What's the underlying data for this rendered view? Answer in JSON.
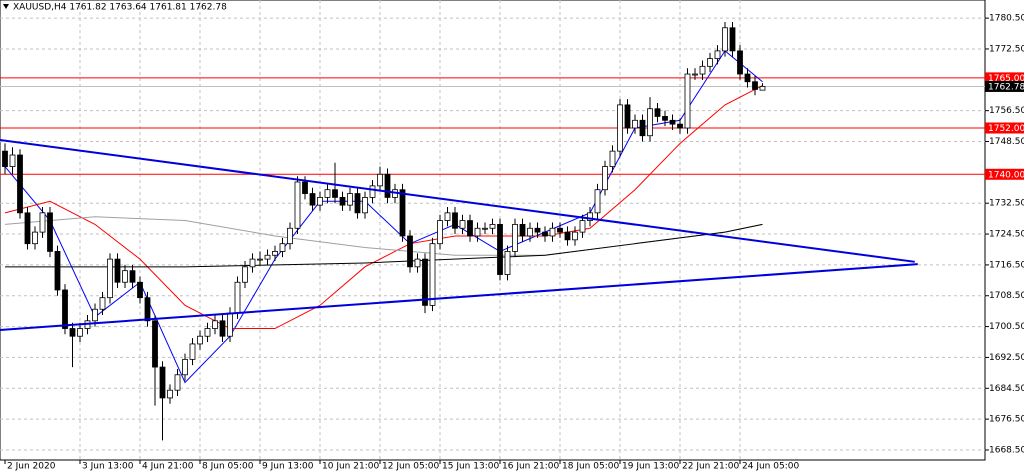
{
  "chart_data": {
    "type": "candlestick",
    "title": "XAUUSD,H4  1761.82 1763.64 1761.81 1762.78",
    "categories": [
      "2 Jun 2020",
      null,
      null,
      null,
      null,
      null,
      null,
      null,
      null,
      null,
      "3 Jun 13:00",
      null,
      null,
      null,
      null,
      null,
      null,
      null,
      "4 Jun 21:00",
      null,
      null,
      null,
      null,
      null,
      null,
      null,
      "8 Jun 05:00",
      null,
      null,
      null,
      null,
      null,
      null,
      null,
      "9 Jun 13:00",
      null,
      null,
      null,
      null,
      null,
      null,
      null,
      "10 Jun 21:00",
      null,
      null,
      null,
      null,
      null,
      null,
      null,
      "12 Jun 05:00",
      null,
      null,
      null,
      null,
      null,
      null,
      null,
      "15 Jun 13:00",
      null,
      null,
      null,
      null,
      null,
      null,
      null,
      "16 Jun 21:00",
      null,
      null,
      null,
      null,
      null,
      null,
      null,
      "18 Jun 05:00",
      null,
      null,
      null,
      null,
      null,
      null,
      null,
      "19 Jun 13:00",
      null,
      null,
      null,
      null,
      null,
      null,
      null,
      "22 Jun 21:00",
      null,
      null,
      null,
      null,
      null,
      null,
      null,
      "24 Jun 05:00",
      null,
      null,
      null
    ],
    "ohlc": [
      [
        1746,
        1748,
        1740,
        1742
      ],
      [
        1742,
        1747,
        1740,
        1745
      ],
      [
        1745,
        1746.5,
        1728.5,
        1730
      ],
      [
        1730,
        1731.5,
        1720.5,
        1722
      ],
      [
        1722,
        1726.5,
        1720.5,
        1725
      ],
      [
        1725,
        1731.5,
        1723.5,
        1730
      ],
      [
        1730,
        1731.5,
        1718.5,
        1720
      ],
      [
        1720,
        1721.5,
        1708.5,
        1710
      ],
      [
        1710,
        1711.5,
        1698.5,
        1700
      ],
      [
        1700,
        1701.5,
        1690,
        1698
      ],
      [
        1698,
        1701.5,
        1696.5,
        1700
      ],
      [
        1700,
        1703.5,
        1698.5,
        1702
      ],
      [
        1702,
        1706.5,
        1700.5,
        1705
      ],
      [
        1705,
        1709.5,
        1703.5,
        1708
      ],
      [
        1708,
        1719.5,
        1706.5,
        1718
      ],
      [
        1718,
        1719.5,
        1710.5,
        1712
      ],
      [
        1712,
        1716.5,
        1710.5,
        1715
      ],
      [
        1715,
        1716.5,
        1710.5,
        1712
      ],
      [
        1712,
        1713.5,
        1706.5,
        1708
      ],
      [
        1708,
        1709.5,
        1700.5,
        1702
      ],
      [
        1702,
        1703.5,
        1680,
        1690
      ],
      [
        1690,
        1691.5,
        1671,
        1682
      ],
      [
        1682,
        1685.5,
        1680.5,
        1684
      ],
      [
        1684,
        1689.5,
        1682.5,
        1688
      ],
      [
        1688,
        1693.5,
        1686.5,
        1692
      ],
      [
        1692,
        1697.5,
        1690.5,
        1696
      ],
      [
        1696,
        1699.5,
        1694.5,
        1698
      ],
      [
        1698,
        1701.5,
        1696.5,
        1700
      ],
      [
        1700,
        1703.5,
        1698.5,
        1702
      ],
      [
        1702,
        1703.5,
        1696.5,
        1698
      ],
      [
        1698,
        1705.5,
        1696.5,
        1704
      ],
      [
        1704,
        1713.5,
        1702.5,
        1712
      ],
      [
        1712,
        1717.5,
        1710.5,
        1716
      ],
      [
        1716,
        1719.5,
        1714.5,
        1718
      ],
      [
        1718,
        1720,
        1716.5,
        1718
      ],
      [
        1718,
        1720.5,
        1716.5,
        1719
      ],
      [
        1719,
        1721.5,
        1717.5,
        1720
      ],
      [
        1720,
        1723.5,
        1718.5,
        1722
      ],
      [
        1722,
        1727.5,
        1720.5,
        1726
      ],
      [
        1726,
        1739.5,
        1724.5,
        1738
      ],
      [
        1738,
        1739.5,
        1733.5,
        1735
      ],
      [
        1735,
        1736.5,
        1730.5,
        1732
      ],
      [
        1732,
        1735.5,
        1730.5,
        1734
      ],
      [
        1734,
        1737.5,
        1732.5,
        1736
      ],
      [
        1736,
        1743,
        1732.5,
        1734
      ],
      [
        1734,
        1735.5,
        1730.5,
        1732
      ],
      [
        1732,
        1736.5,
        1730.5,
        1735
      ],
      [
        1735,
        1736.5,
        1728.5,
        1730
      ],
      [
        1730,
        1735.5,
        1728.5,
        1734
      ],
      [
        1734,
        1738.5,
        1732.5,
        1737
      ],
      [
        1737,
        1742,
        1735.5,
        1740
      ],
      [
        1740,
        1741.5,
        1732.5,
        1734
      ],
      [
        1734,
        1737.5,
        1732.5,
        1736
      ],
      [
        1736,
        1737.5,
        1722.5,
        1724
      ],
      [
        1724,
        1725.5,
        1714.5,
        1716
      ],
      [
        1716,
        1719.5,
        1714.5,
        1718
      ],
      [
        1718,
        1719.5,
        1704,
        1706
      ],
      [
        1706,
        1723.5,
        1704.5,
        1722
      ],
      [
        1722,
        1729.5,
        1720.5,
        1728
      ],
      [
        1728,
        1731.5,
        1726.5,
        1730
      ],
      [
        1730,
        1731.5,
        1724.5,
        1726
      ],
      [
        1726,
        1729.5,
        1724.5,
        1728
      ],
      [
        1728,
        1729.5,
        1722.5,
        1724
      ],
      [
        1724,
        1727.5,
        1722.5,
        1726
      ],
      [
        1726,
        1727.5,
        1724.5,
        1726
      ],
      [
        1726,
        1728.5,
        1724.5,
        1727
      ],
      [
        1727,
        1728.5,
        1712.5,
        1714
      ],
      [
        1714,
        1721.5,
        1712.5,
        1720
      ],
      [
        1720,
        1728.5,
        1718.5,
        1727
      ],
      [
        1727,
        1728.5,
        1722.5,
        1724
      ],
      [
        1724,
        1727.5,
        1722.5,
        1726
      ],
      [
        1726,
        1727.5,
        1723.5,
        1725
      ],
      [
        1725,
        1726.5,
        1722.5,
        1724
      ],
      [
        1724,
        1727.5,
        1722.5,
        1726
      ],
      [
        1726,
        1727.5,
        1723.5,
        1725
      ],
      [
        1725,
        1726.5,
        1721.5,
        1723
      ],
      [
        1723,
        1726.5,
        1721.5,
        1725
      ],
      [
        1725,
        1729.5,
        1723.5,
        1728
      ],
      [
        1728,
        1731.5,
        1726.5,
        1730
      ],
      [
        1730,
        1737.5,
        1728.5,
        1736
      ],
      [
        1736,
        1743.5,
        1734.5,
        1742
      ],
      [
        1742,
        1747.5,
        1740.5,
        1746
      ],
      [
        1746,
        1759.5,
        1744.5,
        1758
      ],
      [
        1758,
        1759.5,
        1750.5,
        1752
      ],
      [
        1752,
        1755.5,
        1750.5,
        1754
      ],
      [
        1754,
        1755.5,
        1748.5,
        1750
      ],
      [
        1750,
        1760,
        1748.5,
        1757
      ],
      [
        1757,
        1758.5,
        1753.5,
        1755
      ],
      [
        1755,
        1756.5,
        1752.5,
        1754
      ],
      [
        1754,
        1755.5,
        1751.5,
        1753
      ],
      [
        1753,
        1754.5,
        1750.5,
        1752
      ],
      [
        1752,
        1767.5,
        1750.5,
        1766
      ],
      [
        1766,
        1767.5,
        1764.5,
        1766
      ],
      [
        1766,
        1769.5,
        1764.5,
        1768
      ],
      [
        1768,
        1771.5,
        1766.5,
        1770
      ],
      [
        1770,
        1773.5,
        1768.5,
        1772
      ],
      [
        1772,
        1779.5,
        1770.5,
        1778
      ],
      [
        1778,
        1779.5,
        1770.5,
        1772
      ],
      [
        1772,
        1773.5,
        1764.5,
        1766
      ],
      [
        1766,
        1767.5,
        1762.5,
        1764
      ],
      [
        1764,
        1765.5,
        1760.5,
        1762
      ],
      [
        1761.82,
        1763.64,
        1761.81,
        1762.78
      ]
    ],
    "ylim": [
      1665.9,
      1785.2
    ],
    "yticks": [
      {
        "value": 1668.5,
        "label": "1668.50"
      },
      {
        "value": 1676.5,
        "label": "1676.50"
      },
      {
        "value": 1684.5,
        "label": "1684.50"
      },
      {
        "value": 1692.5,
        "label": "1692.50"
      },
      {
        "value": 1700.5,
        "label": "1700.50"
      },
      {
        "value": 1708.5,
        "label": "1708.50"
      },
      {
        "value": 1716.5,
        "label": "1716.50"
      },
      {
        "value": 1724.5,
        "label": "1724.50"
      },
      {
        "value": 1732.5,
        "label": "1732.50"
      },
      {
        "value": 1748.5,
        "label": "1748.50"
      },
      {
        "value": 1756.5,
        "label": "1756.50"
      },
      {
        "value": 1772.5,
        "label": "1772.50"
      },
      {
        "value": 1780.5,
        "label": "1780.50"
      }
    ],
    "levels": [
      {
        "value": 1765,
        "label": "1765.00",
        "color": "#ff0000"
      },
      {
        "value": 1752,
        "label": "1752.00",
        "color": "#ff0000"
      },
      {
        "value": 1740,
        "label": "1740.00",
        "color": "#ff0000"
      },
      {
        "value": 1762.78,
        "label": "1762.78",
        "color": "#c0c0c0"
      }
    ],
    "trendlines": [
      {
        "color": "#0000dd",
        "x": [
          -0.67,
          121.3
        ],
        "y": [
          1748.9,
          1717.3
        ]
      },
      {
        "color": "#0000dd",
        "x": [
          -0.67,
          121.7
        ],
        "y": [
          1699.6,
          1716.7
        ]
      }
    ],
    "moving_averages": [
      {
        "color": "#0000ff",
        "x": [
          0,
          6,
          12,
          18,
          24,
          30,
          36,
          42,
          48,
          54,
          60,
          66,
          72,
          78,
          84,
          90,
          96,
          101
        ],
        "y": [
          1742,
          1728,
          1703,
          1712,
          1686,
          1698,
          1718,
          1733,
          1733,
          1722,
          1727,
          1720,
          1725,
          1730,
          1752,
          1754,
          1772,
          1764
        ]
      },
      {
        "color": "#ff0000",
        "x": [
          0,
          6,
          12,
          18,
          24,
          30,
          36,
          42,
          48,
          54,
          60,
          66,
          72,
          78,
          84,
          90,
          96,
          101
        ],
        "y": [
          1730,
          1733,
          1727,
          1718,
          1706,
          1700,
          1700,
          1706,
          1716,
          1722,
          1724,
          1724,
          1724,
          1726,
          1736,
          1748,
          1758,
          1763
        ]
      },
      {
        "color": "#a0a0a0",
        "x": [
          0,
          12,
          24,
          36,
          48,
          60,
          72,
          84,
          96,
          101
        ],
        "y": [
          1727,
          1729,
          1728,
          1724,
          1721,
          1719,
          1719,
          1722,
          1725,
          1727
        ]
      },
      {
        "color": "#000000",
        "x": [
          0,
          24,
          48,
          72,
          84,
          96,
          101
        ],
        "y": [
          1716,
          1716,
          1717,
          1719,
          1722,
          1725,
          1727
        ]
      }
    ],
    "grid": true
  }
}
